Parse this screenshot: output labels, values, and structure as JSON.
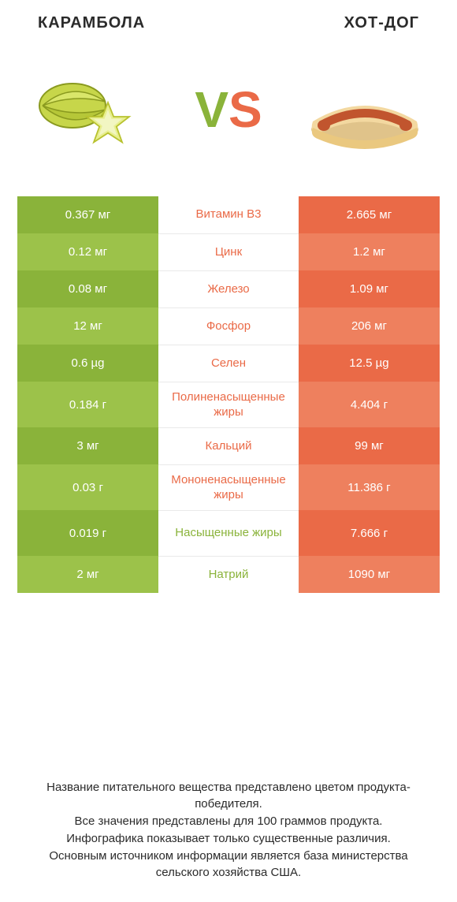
{
  "titles": {
    "left": "КАРАМБОЛА",
    "right": "ХОТ-ДОГ"
  },
  "vs": {
    "v": "V",
    "s": "S"
  },
  "colors": {
    "green_dark": "#8ab33a",
    "green_light": "#9cc24a",
    "orange_dark": "#ea6a47",
    "orange_light": "#ee805e",
    "mid_border": "#e9e9e9",
    "text_mid_green": "#8ab33a",
    "text_mid_orange": "#ea6a47"
  },
  "layout": {
    "row_height_single": 47,
    "row_height_double": 58,
    "mid_fontsize": 15,
    "side_fontsize": 15,
    "side_text_color": "#ffffff"
  },
  "rows": [
    {
      "left": "0.367 мг",
      "mid": "Витамин B3",
      "right": "2.665 мг",
      "mid_color": "orange",
      "double": false
    },
    {
      "left": "0.12 мг",
      "mid": "Цинк",
      "right": "1.2 мг",
      "mid_color": "orange",
      "double": false
    },
    {
      "left": "0.08 мг",
      "mid": "Железо",
      "right": "1.09 мг",
      "mid_color": "orange",
      "double": false
    },
    {
      "left": "12 мг",
      "mid": "Фосфор",
      "right": "206 мг",
      "mid_color": "orange",
      "double": false
    },
    {
      "left": "0.6 µg",
      "mid": "Селен",
      "right": "12.5 µg",
      "mid_color": "orange",
      "double": false
    },
    {
      "left": "0.184 г",
      "mid": "Полиненасыщенные жиры",
      "right": "4.404 г",
      "mid_color": "orange",
      "double": true
    },
    {
      "left": "3 мг",
      "mid": "Кальций",
      "right": "99 мг",
      "mid_color": "orange",
      "double": false
    },
    {
      "left": "0.03 г",
      "mid": "Мононенасыщенные жиры",
      "right": "11.386 г",
      "mid_color": "orange",
      "double": true
    },
    {
      "left": "0.019 г",
      "mid": "Насыщенные жиры",
      "right": "7.666 г",
      "mid_color": "green",
      "double": true
    },
    {
      "left": "2 мг",
      "mid": "Натрий",
      "right": "1090 мг",
      "mid_color": "green",
      "double": false
    }
  ],
  "footnote": [
    "Название питательного вещества представлено цветом продукта-победителя.",
    "Все значения представлены для 100 граммов продукта.",
    "Инфографика показывает только существенные различия.",
    "Основным источником информации является база министерства сельского хозяйства США."
  ]
}
